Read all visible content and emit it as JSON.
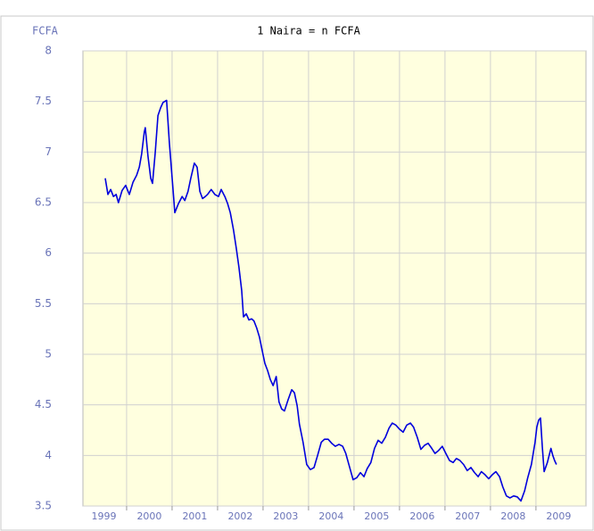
{
  "chart_data": {
    "type": "line",
    "title": "1 Naira = n FCFA",
    "y_label": "FCFA",
    "color": "#0000dd",
    "grid": true,
    "xlim": [
      1999.04,
      2010.1
    ],
    "xticks": [
      {
        "value": 1999.5,
        "label": "1999"
      },
      {
        "value": 2000.5,
        "label": "2000"
      },
      {
        "value": 2001.5,
        "label": "2001"
      },
      {
        "value": 2002.5,
        "label": "2002"
      },
      {
        "value": 2003.5,
        "label": "2003"
      },
      {
        "value": 2004.5,
        "label": "2004"
      },
      {
        "value": 2005.5,
        "label": "2005"
      },
      {
        "value": 2006.5,
        "label": "2006"
      },
      {
        "value": 2007.5,
        "label": "2007"
      },
      {
        "value": 2008.5,
        "label": "2008"
      },
      {
        "value": 2009.5,
        "label": "2009"
      }
    ],
    "xgrid": [
      2000,
      2001,
      2002,
      2003,
      2004,
      2005,
      2006,
      2007,
      2008,
      2009
    ],
    "ylim": [
      3.5,
      8
    ],
    "yticks": [
      3.5,
      4,
      4.5,
      5,
      5.5,
      6,
      6.5,
      7,
      7.5,
      8
    ],
    "x": [
      1999.53,
      1999.59,
      1999.65,
      1999.71,
      1999.77,
      1999.82,
      1999.9,
      1999.98,
      2000.06,
      2000.14,
      2000.22,
      2000.28,
      2000.33,
      2000.39,
      2000.41,
      2000.47,
      2000.53,
      2000.57,
      2000.63,
      2000.69,
      2000.75,
      2000.8,
      2000.88,
      2000.94,
      2001.02,
      2001.06,
      2001.14,
      2001.22,
      2001.28,
      2001.35,
      2001.41,
      2001.49,
      2001.55,
      2001.61,
      2001.67,
      2001.73,
      2001.78,
      2001.86,
      2001.94,
      2002.02,
      2002.08,
      2002.16,
      2002.22,
      2002.28,
      2002.35,
      2002.41,
      2002.47,
      2002.53,
      2002.57,
      2002.63,
      2002.69,
      2002.75,
      2002.8,
      2002.86,
      2002.92,
      2002.98,
      2003.04,
      2003.1,
      2003.16,
      2003.22,
      2003.29,
      2003.35,
      2003.41,
      2003.47,
      2003.55,
      2003.63,
      2003.69,
      2003.75,
      2003.8,
      2003.88,
      2003.96,
      2004.04,
      2004.12,
      2004.2,
      2004.28,
      2004.35,
      2004.43,
      2004.51,
      2004.59,
      2004.67,
      2004.75,
      2004.82,
      2004.9,
      2004.98,
      2005.06,
      2005.14,
      2005.22,
      2005.29,
      2005.37,
      2005.45,
      2005.53,
      2005.61,
      2005.69,
      2005.77,
      2005.84,
      2005.92,
      2006.0,
      2006.08,
      2006.16,
      2006.24,
      2006.31,
      2006.39,
      2006.47,
      2006.55,
      2006.63,
      2006.71,
      2006.78,
      2006.86,
      2006.94,
      2007.02,
      2007.1,
      2007.18,
      2007.25,
      2007.33,
      2007.41,
      2007.49,
      2007.57,
      2007.65,
      2007.73,
      2007.8,
      2007.88,
      2007.96,
      2008.04,
      2008.12,
      2008.2,
      2008.27,
      2008.35,
      2008.43,
      2008.51,
      2008.59,
      2008.67,
      2008.75,
      2008.82,
      2008.9,
      2008.98,
      2009.02,
      2009.06,
      2009.1,
      2009.14,
      2009.18,
      2009.25,
      2009.33,
      2009.37,
      2009.41,
      2009.45
    ],
    "values": [
      6.74,
      6.58,
      6.63,
      6.56,
      6.58,
      6.5,
      6.62,
      6.67,
      6.58,
      6.7,
      6.77,
      6.85,
      6.98,
      7.2,
      7.24,
      6.96,
      6.74,
      6.69,
      7.0,
      7.36,
      7.44,
      7.49,
      7.51,
      7.09,
      6.63,
      6.4,
      6.49,
      6.56,
      6.52,
      6.61,
      6.74,
      6.89,
      6.85,
      6.61,
      6.54,
      6.56,
      6.58,
      6.63,
      6.58,
      6.56,
      6.63,
      6.56,
      6.49,
      6.4,
      6.23,
      6.05,
      5.86,
      5.63,
      5.37,
      5.4,
      5.34,
      5.35,
      5.33,
      5.26,
      5.17,
      5.04,
      4.91,
      4.84,
      4.75,
      4.69,
      4.78,
      4.53,
      4.46,
      4.44,
      4.55,
      4.65,
      4.62,
      4.49,
      4.31,
      4.13,
      3.91,
      3.86,
      3.88,
      4.0,
      4.13,
      4.16,
      4.16,
      4.12,
      4.09,
      4.11,
      4.09,
      4.02,
      3.89,
      3.76,
      3.78,
      3.83,
      3.79,
      3.87,
      3.93,
      4.07,
      4.15,
      4.12,
      4.18,
      4.27,
      4.32,
      4.3,
      4.26,
      4.23,
      4.3,
      4.32,
      4.28,
      4.18,
      4.06,
      4.1,
      4.12,
      4.07,
      4.02,
      4.05,
      4.09,
      4.02,
      3.95,
      3.93,
      3.97,
      3.95,
      3.91,
      3.85,
      3.88,
      3.83,
      3.79,
      3.84,
      3.81,
      3.77,
      3.81,
      3.84,
      3.79,
      3.69,
      3.6,
      3.58,
      3.6,
      3.59,
      3.55,
      3.65,
      3.78,
      3.91,
      4.13,
      4.28,
      4.35,
      4.37,
      4.09,
      3.84,
      3.93,
      4.07,
      4.0,
      3.95,
      3.91
    ]
  }
}
